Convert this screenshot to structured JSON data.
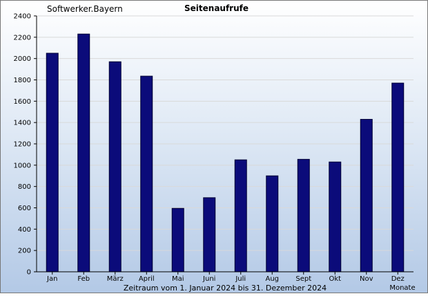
{
  "site_name": "Softwerker.Bayern",
  "colors": {
    "bar": "#0b0b7a",
    "bar_outline": "#000033",
    "grid": "#d9d9d9"
  },
  "chart_data": {
    "type": "bar",
    "title": "Seitenaufrufe",
    "xlabel": "Zeitraum vom 1. Januar 2024 bis 31. Dezember 2024",
    "xunit_label": "Monate",
    "ylabel": "",
    "ylim": [
      0,
      2400
    ],
    "yticks": [
      0,
      200,
      400,
      600,
      800,
      1000,
      1200,
      1400,
      1600,
      1800,
      2000,
      2200,
      2400
    ],
    "grid": true,
    "categories": [
      "Jan",
      "Feb",
      "März",
      "April",
      "Mai",
      "Juni",
      "Juli",
      "Aug",
      "Sept",
      "Okt",
      "Nov",
      "Dez"
    ],
    "values": [
      2050,
      2230,
      1970,
      1835,
      595,
      695,
      1050,
      900,
      1055,
      1030,
      1430,
      1770
    ]
  }
}
